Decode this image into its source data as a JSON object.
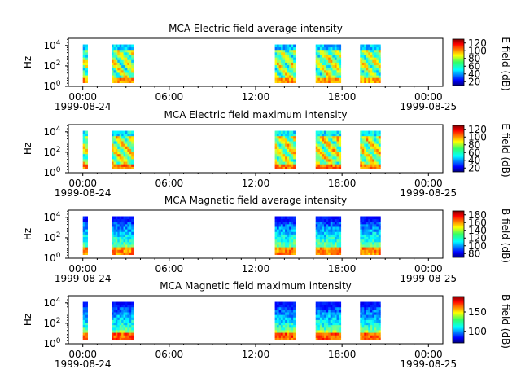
{
  "chart_data": [
    {
      "type": "heatmap",
      "title": "MCA  Electric field average intensity",
      "ylabel": "Hz",
      "ylog": true,
      "yticks": [
        "10^0",
        "10^2",
        "10^4"
      ],
      "xticks": [
        "00:00",
        "06:00",
        "12:00",
        "18:00",
        "00:00"
      ],
      "xdates": [
        "1999-08-24",
        "",
        "",
        "",
        "1999-08-25"
      ],
      "xlim": [
        "1999-08-23 23:00",
        "1999-08-25 01:00"
      ],
      "colorbar": {
        "label": "E field (dB)",
        "ticks": [
          20,
          40,
          60,
          80,
          100,
          120
        ],
        "range": [
          10,
          130
        ]
      },
      "active_intervals": [
        [
          "00:00",
          "00:20"
        ],
        [
          "02:00",
          "03:30"
        ],
        [
          "13:20",
          "14:45"
        ],
        [
          "16:10",
          "17:55"
        ],
        [
          "19:15",
          "20:40"
        ]
      ]
    },
    {
      "type": "heatmap",
      "title": "MCA  Electric field maximum intensity",
      "ylabel": "Hz",
      "ylog": true,
      "yticks": [
        "10^0",
        "10^2",
        "10^4"
      ],
      "xticks": [
        "00:00",
        "06:00",
        "12:00",
        "18:00",
        "00:00"
      ],
      "xdates": [
        "1999-08-24",
        "",
        "",
        "",
        "1999-08-25"
      ],
      "xlim": [
        "1999-08-23 23:00",
        "1999-08-25 01:00"
      ],
      "colorbar": {
        "label": "E field (dB)",
        "ticks": [
          20,
          40,
          60,
          80,
          100,
          120
        ],
        "range": [
          10,
          130
        ]
      },
      "active_intervals": [
        [
          "00:00",
          "00:20"
        ],
        [
          "02:00",
          "03:30"
        ],
        [
          "13:20",
          "14:45"
        ],
        [
          "16:10",
          "17:55"
        ],
        [
          "19:15",
          "20:40"
        ]
      ]
    },
    {
      "type": "heatmap",
      "title": "MCA  Magnetic field average intensity",
      "ylabel": "Hz",
      "ylog": true,
      "yticks": [
        "10^0",
        "10^2",
        "10^4"
      ],
      "xticks": [
        "00:00",
        "06:00",
        "12:00",
        "18:00",
        "00:00"
      ],
      "xdates": [
        "1999-08-24",
        "",
        "",
        "",
        "1999-08-25"
      ],
      "xlim": [
        "1999-08-23 23:00",
        "1999-08-25 01:00"
      ],
      "colorbar": {
        "label": "B field (dB)",
        "ticks": [
          80,
          100,
          120,
          140,
          160,
          180
        ],
        "range": [
          70,
          190
        ]
      },
      "active_intervals": [
        [
          "00:00",
          "00:20"
        ],
        [
          "02:00",
          "03:30"
        ],
        [
          "13:20",
          "14:45"
        ],
        [
          "16:10",
          "17:55"
        ],
        [
          "19:15",
          "20:40"
        ]
      ]
    },
    {
      "type": "heatmap",
      "title": "MCA  Magnetic field maximum intensity",
      "ylabel": "Hz",
      "ylog": true,
      "yticks": [
        "10^0",
        "10^2",
        "10^4"
      ],
      "xticks": [
        "00:00",
        "06:00",
        "12:00",
        "18:00",
        "00:00"
      ],
      "xdates": [
        "1999-08-24",
        "",
        "",
        "",
        "1999-08-25"
      ],
      "xlim": [
        "1999-08-23 23:00",
        "1999-08-25 01:00"
      ],
      "colorbar": {
        "label": "B field (dB)",
        "ticks": [
          100,
          150
        ],
        "range": [
          70,
          190
        ]
      },
      "active_intervals": [
        [
          "00:00",
          "00:20"
        ],
        [
          "02:00",
          "03:30"
        ],
        [
          "13:20",
          "14:45"
        ],
        [
          "16:10",
          "17:55"
        ],
        [
          "19:15",
          "20:40"
        ]
      ]
    }
  ]
}
